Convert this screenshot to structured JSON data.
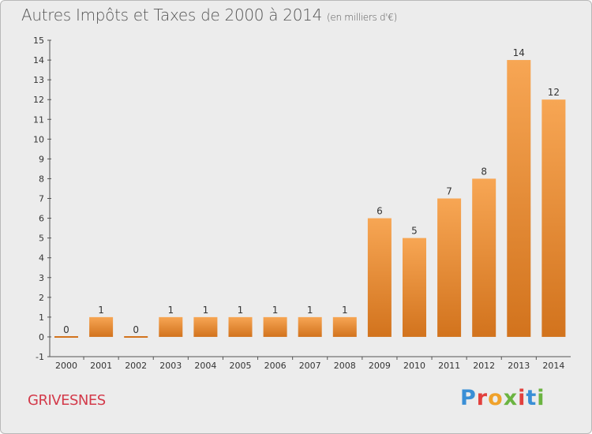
{
  "header": {
    "title": "Autres Impôts et Taxes de 2000 à 2014",
    "subtitle": "(en milliers d'€)"
  },
  "footer": {
    "commune": "GRIVESNES",
    "logo": "Proxiti"
  },
  "colors": {
    "bar_top": "#f7a654",
    "bar_bottom": "#d2731d",
    "commune": "#d33a4a"
  },
  "chart_data": {
    "type": "bar",
    "categories": [
      "2000",
      "2001",
      "2002",
      "2003",
      "2004",
      "2005",
      "2006",
      "2007",
      "2008",
      "2009",
      "2010",
      "2011",
      "2012",
      "2013",
      "2014"
    ],
    "values": [
      0,
      1,
      0,
      1,
      1,
      1,
      1,
      1,
      1,
      6,
      5,
      7,
      8,
      14,
      12
    ],
    "title": "Autres Impôts et Taxes de 2000 à 2014",
    "subtitle": "(en milliers d'€)",
    "xlabel": "",
    "ylabel": "",
    "ylim": [
      -1,
      15
    ],
    "yticks": [
      "-1",
      "0",
      "1",
      "2",
      "3",
      "4",
      "5",
      "6",
      "7",
      "8",
      "9",
      "10",
      "11",
      "12",
      "13",
      "14",
      "15"
    ],
    "grid": false,
    "legend": "none"
  }
}
